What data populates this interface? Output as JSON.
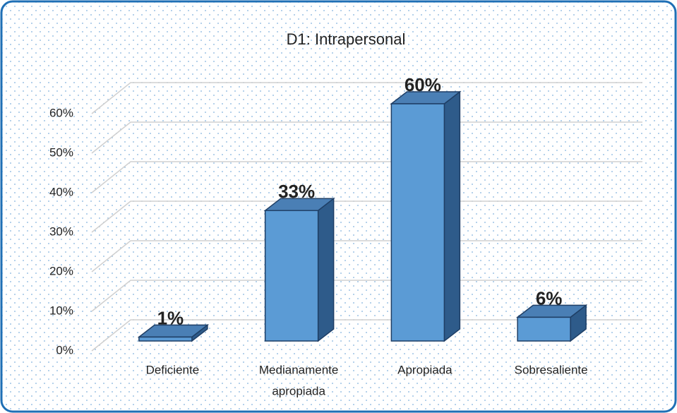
{
  "chart_data": {
    "type": "bar3d",
    "title": "D1: Intrapersonal",
    "categories": [
      [
        "Deficiente"
      ],
      [
        "Medianamente",
        "apropiada"
      ],
      [
        "Apropiada"
      ],
      [
        "Sobresaliente"
      ]
    ],
    "values": [
      1,
      33,
      60,
      6
    ],
    "value_labels": [
      "1%",
      "33%",
      "60%",
      "6%"
    ],
    "color": "#5b9bd5",
    "ylim": [
      0,
      60
    ],
    "yticks": [
      {
        "value": 0,
        "label": "0%"
      },
      {
        "value": 10,
        "label": "10%"
      },
      {
        "value": 20,
        "label": "20%"
      },
      {
        "value": 30,
        "label": "30%"
      },
      {
        "value": 40,
        "label": "40%"
      },
      {
        "value": 50,
        "label": "50%"
      },
      {
        "value": 60,
        "label": "60%"
      }
    ],
    "grid": true
  }
}
